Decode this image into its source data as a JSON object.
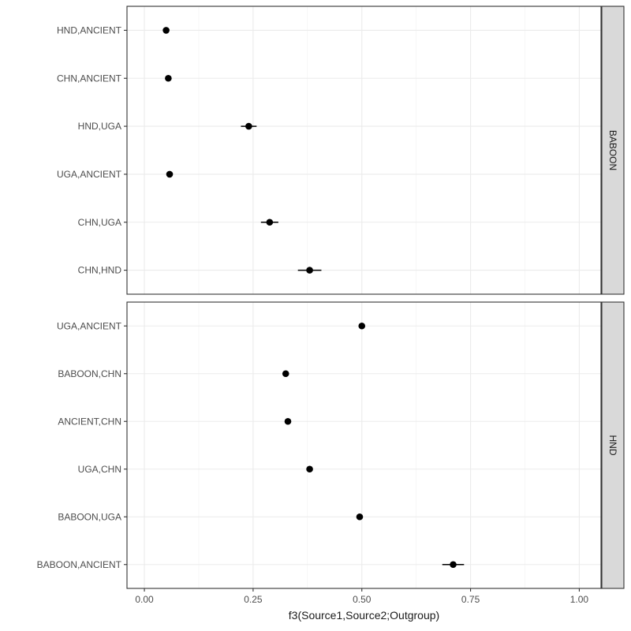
{
  "chart_data": {
    "type": "scatter",
    "subtype": "dot-with-error-bars",
    "xlabel": "f3(Source1,Source2;Outgroup)",
    "xlim": [
      -0.04,
      1.05
    ],
    "xticks": [
      0.0,
      0.25,
      0.5,
      0.75,
      1.0
    ],
    "xtick_labels": [
      "0.00",
      "0.25",
      "0.50",
      "0.75",
      "1.00"
    ],
    "grid": true,
    "facets": [
      {
        "strip_label": "BABOON",
        "categories": [
          "HND,ANCIENT",
          "CHN,ANCIENT",
          "HND,UGA",
          "UGA,ANCIENT",
          "CHN,UGA",
          "CHN,HND"
        ],
        "values": [
          0.05,
          0.055,
          0.24,
          0.058,
          0.288,
          0.38
        ],
        "errors": [
          0.004,
          0.004,
          0.018,
          0.004,
          0.02,
          0.027
        ]
      },
      {
        "strip_label": "HND",
        "categories": [
          "UGA,ANCIENT",
          "BABOON,CHN",
          "ANCIENT,CHN",
          "UGA,CHN",
          "BABOON,UGA",
          "BABOON,ANCIENT"
        ],
        "values": [
          0.5,
          0.325,
          0.33,
          0.38,
          0.495,
          0.71
        ],
        "errors": [
          0.004,
          0.005,
          0.005,
          0.005,
          0.005,
          0.025
        ]
      }
    ]
  }
}
